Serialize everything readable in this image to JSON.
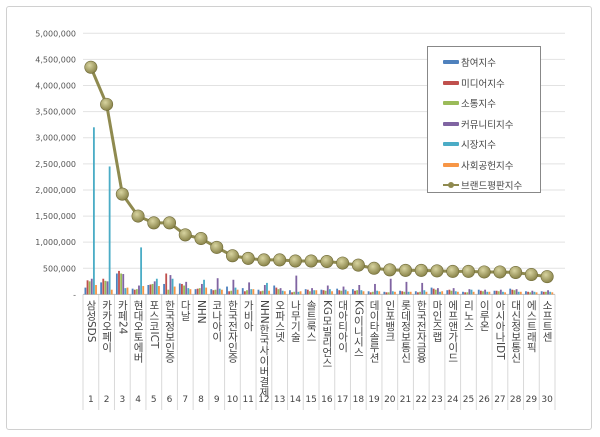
{
  "chart_data": {
    "type": "bar",
    "title": "",
    "xlabel": "",
    "ylabel": "",
    "ylim": [
      0,
      5000000
    ],
    "yticks": [
      "-",
      "500,000",
      "1,000,000",
      "1,500,000",
      "2,000,000",
      "2,500,000",
      "3,000,000",
      "3,500,000",
      "4,000,000",
      "4,500,000",
      "5,000,000"
    ],
    "grid": true,
    "legend_position": "top-right",
    "categories": [
      "삼성SDS",
      "카카오페이",
      "카페24",
      "현대오토에버",
      "포스코ICT",
      "한국정보인증",
      "다날",
      "NHN",
      "코나아이",
      "한국전자인증",
      "가비아",
      "NHN한국사이버결제",
      "오파스넷",
      "나무기술",
      "솔트룩스",
      "KG모빌리언스",
      "대아티아이",
      "KG이니시스",
      "데이타솔루션",
      "인포뱅크",
      "롯데정보통신",
      "한국전자금융",
      "마인즈랩",
      "에프앤가이드",
      "리노스",
      "이루온",
      "아시아나IDT",
      "대신정보통신",
      "에스트래픽",
      "소프트센"
    ],
    "ranks": [
      "1",
      "2",
      "3",
      "4",
      "5",
      "6",
      "7",
      "8",
      "9",
      "10",
      "11",
      "12",
      "13",
      "14",
      "15",
      "16",
      "17",
      "18",
      "19",
      "20",
      "21",
      "22",
      "23",
      "24",
      "25",
      "26",
      "27",
      "28",
      "29",
      "30"
    ],
    "series": [
      {
        "name": "참여지수",
        "type": "bar",
        "color": "#4f81bd",
        "values": [
          130000,
          230000,
          400000,
          110000,
          180000,
          200000,
          210000,
          100000,
          100000,
          150000,
          120000,
          90000,
          170000,
          80000,
          100000,
          90000,
          110000,
          100000,
          60000,
          50000,
          70000,
          60000,
          130000,
          80000,
          50000,
          90000,
          70000,
          110000,
          60000,
          60000
        ]
      },
      {
        "name": "미디어지수",
        "type": "bar",
        "color": "#c0504d",
        "values": [
          270000,
          300000,
          450000,
          90000,
          190000,
          400000,
          200000,
          110000,
          80000,
          60000,
          60000,
          60000,
          130000,
          40000,
          90000,
          80000,
          80000,
          70000,
          40000,
          40000,
          60000,
          40000,
          110000,
          90000,
          40000,
          70000,
          70000,
          90000,
          50000,
          50000
        ]
      },
      {
        "name": "소통지수",
        "type": "bar",
        "color": "#9bbb59",
        "values": [
          250000,
          260000,
          400000,
          100000,
          200000,
          90000,
          170000,
          120000,
          90000,
          70000,
          80000,
          70000,
          100000,
          50000,
          60000,
          70000,
          70000,
          80000,
          50000,
          40000,
          50000,
          50000,
          90000,
          70000,
          40000,
          60000,
          60000,
          80000,
          40000,
          50000
        ]
      },
      {
        "name": "커뮤니티지수",
        "type": "bar",
        "color": "#8064a2",
        "values": [
          300000,
          250000,
          390000,
          170000,
          250000,
          370000,
          240000,
          200000,
          310000,
          280000,
          230000,
          180000,
          120000,
          360000,
          120000,
          170000,
          150000,
          180000,
          200000,
          300000,
          240000,
          220000,
          120000,
          120000,
          100000,
          90000,
          90000,
          100000,
          70000,
          80000
        ]
      },
      {
        "name": "시장지수",
        "type": "bar",
        "color": "#4bacc6",
        "values": [
          3200000,
          2450000,
          120000,
          900000,
          300000,
          300000,
          120000,
          280000,
          110000,
          130000,
          100000,
          220000,
          70000,
          50000,
          80000,
          100000,
          90000,
          80000,
          70000,
          60000,
          50000,
          80000,
          50000,
          60000,
          90000,
          50000,
          50000,
          50000,
          50000,
          50000
        ]
      },
      {
        "name": "사회공헌지수",
        "type": "bar",
        "color": "#f79646",
        "values": [
          180000,
          90000,
          130000,
          160000,
          160000,
          150000,
          100000,
          130000,
          90000,
          90000,
          100000,
          70000,
          60000,
          60000,
          80000,
          60000,
          60000,
          60000,
          60000,
          50000,
          50000,
          50000,
          60000,
          50000,
          50000,
          50000,
          40000,
          50000,
          40000,
          40000
        ]
      },
      {
        "name": "브랜드평판지수",
        "type": "line",
        "color": "#8f8a4f",
        "values": [
          4350000,
          3640000,
          1920000,
          1500000,
          1370000,
          1370000,
          1140000,
          1070000,
          900000,
          740000,
          690000,
          660000,
          660000,
          640000,
          640000,
          630000,
          600000,
          560000,
          500000,
          470000,
          460000,
          460000,
          450000,
          440000,
          440000,
          430000,
          430000,
          420000,
          380000,
          340000
        ]
      }
    ]
  }
}
